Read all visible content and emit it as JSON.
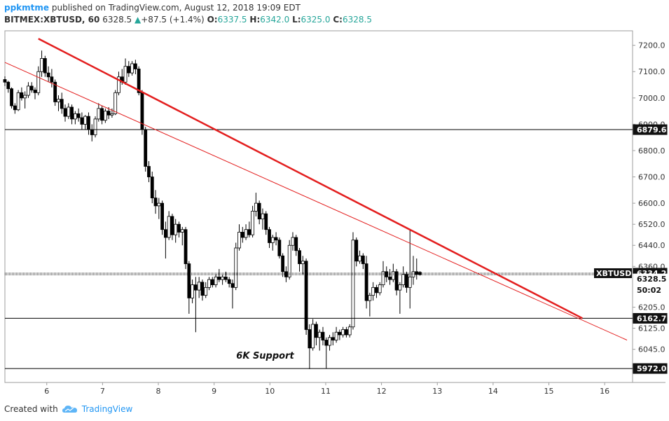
{
  "header": {
    "author": "ppkmtme",
    "published": "published on TradingView.com, August 12, 2018 19:09 EDT",
    "symbol": "BITMEX:XBTUSD, 60",
    "last": "6328.5",
    "change": "+87.5 (+1.4%)",
    "o_label": "O:",
    "o_val": "6337.5",
    "h_label": "H:",
    "h_val": "6342.0",
    "l_label": "L:",
    "l_val": "6325.0",
    "c_label": "C:",
    "c_val": "6328.5"
  },
  "footer": {
    "created_with": "Created with",
    "brand": "TradingView"
  },
  "chart_data": {
    "type": "candlestick",
    "title": "",
    "xlabel": "",
    "ylabel": "",
    "x_ticks": [
      "6",
      "7",
      "8",
      "9",
      "10",
      "11",
      "12",
      "13",
      "14",
      "15",
      "16"
    ],
    "y_ticks": [
      "7200.0",
      "7100.0",
      "7000.0",
      "6900.0",
      "6800.0",
      "6700.0",
      "6600.0",
      "6520.0",
      "6440.0",
      "6360.0",
      "6205.0",
      "6125.0",
      "6045.0"
    ],
    "xlim": [
      5.25,
      16.5
    ],
    "ylim": [
      5919,
      7255
    ],
    "grid": false,
    "horizontal_levels": [
      {
        "value": 6879.6,
        "label": "6879.6"
      },
      {
        "value": 6162.7,
        "label": "6162.7"
      },
      {
        "value": 5972.0,
        "label": "5972.0"
      }
    ],
    "price_labels": [
      {
        "name": "XBTUSD",
        "value": 6334.2,
        "label": "6334.2",
        "style": "dark"
      },
      {
        "name": "last",
        "value": 6328.5,
        "label": "6328.5",
        "style": "light"
      },
      {
        "name": "countdown",
        "value": 6270,
        "label": "50:02",
        "style": "light"
      }
    ],
    "trendlines": [
      {
        "name": "thick-downtrend",
        "points": [
          [
            5.85,
            7225
          ],
          [
            15.6,
            6163
          ]
        ],
        "color": "#e31e1e",
        "width": 2.5
      },
      {
        "name": "thin-downtrend",
        "points": [
          [
            5.25,
            7135
          ],
          [
            16.4,
            6080
          ]
        ],
        "color": "#e31e1e",
        "width": 1
      }
    ],
    "annotations": [
      {
        "text": "6K Support",
        "x": 10.0,
        "y": 6010
      }
    ],
    "candles": [
      {
        "t": 5.25,
        "o": 7070,
        "h": 7082,
        "l": 7045,
        "c": 7060
      },
      {
        "t": 5.31,
        "o": 7060,
        "h": 7065,
        "l": 7020,
        "c": 7035
      },
      {
        "t": 5.37,
        "o": 7035,
        "h": 7040,
        "l": 6960,
        "c": 6970
      },
      {
        "t": 5.43,
        "o": 6970,
        "h": 6980,
        "l": 6940,
        "c": 6955
      },
      {
        "t": 5.49,
        "o": 6955,
        "h": 7030,
        "l": 6950,
        "c": 7020
      },
      {
        "t": 5.55,
        "o": 7020,
        "h": 7040,
        "l": 6990,
        "c": 7000
      },
      {
        "t": 5.61,
        "o": 7000,
        "h": 7025,
        "l": 6960,
        "c": 7010
      },
      {
        "t": 5.67,
        "o": 7010,
        "h": 7060,
        "l": 7000,
        "c": 7045
      },
      {
        "t": 5.73,
        "o": 7045,
        "h": 7060,
        "l": 7020,
        "c": 7030
      },
      {
        "t": 5.79,
        "o": 7030,
        "h": 7040,
        "l": 6995,
        "c": 7020
      },
      {
        "t": 5.85,
        "o": 7020,
        "h": 7120,
        "l": 7010,
        "c": 7100
      },
      {
        "t": 5.91,
        "o": 7100,
        "h": 7180,
        "l": 7080,
        "c": 7150
      },
      {
        "t": 5.97,
        "o": 7150,
        "h": 7160,
        "l": 7080,
        "c": 7095
      },
      {
        "t": 6.03,
        "o": 7095,
        "h": 7120,
        "l": 7060,
        "c": 7080
      },
      {
        "t": 6.09,
        "o": 7080,
        "h": 7110,
        "l": 7040,
        "c": 7060
      },
      {
        "t": 6.15,
        "o": 7060,
        "h": 7070,
        "l": 6970,
        "c": 6985
      },
      {
        "t": 6.21,
        "o": 6985,
        "h": 7010,
        "l": 6950,
        "c": 6995
      },
      {
        "t": 6.27,
        "o": 6995,
        "h": 7020,
        "l": 6940,
        "c": 6960
      },
      {
        "t": 6.33,
        "o": 6960,
        "h": 6975,
        "l": 6910,
        "c": 6930
      },
      {
        "t": 6.39,
        "o": 6930,
        "h": 6980,
        "l": 6920,
        "c": 6965
      },
      {
        "t": 6.45,
        "o": 6965,
        "h": 6975,
        "l": 6900,
        "c": 6920
      },
      {
        "t": 6.51,
        "o": 6920,
        "h": 6950,
        "l": 6900,
        "c": 6940
      },
      {
        "t": 6.57,
        "o": 6940,
        "h": 6960,
        "l": 6910,
        "c": 6925
      },
      {
        "t": 6.63,
        "o": 6925,
        "h": 6945,
        "l": 6880,
        "c": 6900
      },
      {
        "t": 6.69,
        "o": 6900,
        "h": 6935,
        "l": 6880,
        "c": 6930
      },
      {
        "t": 6.75,
        "o": 6930,
        "h": 6945,
        "l": 6860,
        "c": 6880
      },
      {
        "t": 6.81,
        "o": 6880,
        "h": 6900,
        "l": 6835,
        "c": 6860
      },
      {
        "t": 6.87,
        "o": 6860,
        "h": 6930,
        "l": 6850,
        "c": 6920
      },
      {
        "t": 6.93,
        "o": 6920,
        "h": 6980,
        "l": 6910,
        "c": 6960
      },
      {
        "t": 6.99,
        "o": 6960,
        "h": 6970,
        "l": 6900,
        "c": 6915
      },
      {
        "t": 7.05,
        "o": 6915,
        "h": 6960,
        "l": 6905,
        "c": 6950
      },
      {
        "t": 7.11,
        "o": 6950,
        "h": 6965,
        "l": 6920,
        "c": 6935
      },
      {
        "t": 7.17,
        "o": 6935,
        "h": 6960,
        "l": 6925,
        "c": 6940
      },
      {
        "t": 7.23,
        "o": 6940,
        "h": 7030,
        "l": 6935,
        "c": 7020
      },
      {
        "t": 7.29,
        "o": 7020,
        "h": 7100,
        "l": 7010,
        "c": 7080
      },
      {
        "t": 7.35,
        "o": 7080,
        "h": 7110,
        "l": 7050,
        "c": 7060
      },
      {
        "t": 7.41,
        "o": 7060,
        "h": 7150,
        "l": 7050,
        "c": 7120
      },
      {
        "t": 7.47,
        "o": 7120,
        "h": 7140,
        "l": 7080,
        "c": 7095
      },
      {
        "t": 7.53,
        "o": 7095,
        "h": 7140,
        "l": 7085,
        "c": 7130
      },
      {
        "t": 7.59,
        "o": 7130,
        "h": 7145,
        "l": 7090,
        "c": 7110
      },
      {
        "t": 7.65,
        "o": 7110,
        "h": 7120,
        "l": 7010,
        "c": 7020
      },
      {
        "t": 7.71,
        "o": 7020,
        "h": 7030,
        "l": 6860,
        "c": 6880
      },
      {
        "t": 7.77,
        "o": 6880,
        "h": 6890,
        "l": 6720,
        "c": 6740
      },
      {
        "t": 7.83,
        "o": 6740,
        "h": 6760,
        "l": 6680,
        "c": 6700
      },
      {
        "t": 7.89,
        "o": 6700,
        "h": 6720,
        "l": 6600,
        "c": 6620
      },
      {
        "t": 7.95,
        "o": 6620,
        "h": 6650,
        "l": 6560,
        "c": 6590
      },
      {
        "t": 8.01,
        "o": 6590,
        "h": 6620,
        "l": 6540,
        "c": 6600
      },
      {
        "t": 8.07,
        "o": 6600,
        "h": 6610,
        "l": 6480,
        "c": 6500
      },
      {
        "t": 8.13,
        "o": 6500,
        "h": 6530,
        "l": 6390,
        "c": 6470
      },
      {
        "t": 8.19,
        "o": 6470,
        "h": 6570,
        "l": 6460,
        "c": 6550
      },
      {
        "t": 8.25,
        "o": 6550,
        "h": 6560,
        "l": 6460,
        "c": 6480
      },
      {
        "t": 8.31,
        "o": 6480,
        "h": 6540,
        "l": 6450,
        "c": 6520
      },
      {
        "t": 8.37,
        "o": 6520,
        "h": 6530,
        "l": 6470,
        "c": 6490
      },
      {
        "t": 8.43,
        "o": 6490,
        "h": 6510,
        "l": 6440,
        "c": 6500
      },
      {
        "t": 8.49,
        "o": 6500,
        "h": 6510,
        "l": 6350,
        "c": 6370
      },
      {
        "t": 8.55,
        "o": 6370,
        "h": 6380,
        "l": 6180,
        "c": 6240
      },
      {
        "t": 8.61,
        "o": 6240,
        "h": 6310,
        "l": 6220,
        "c": 6290
      },
      {
        "t": 8.67,
        "o": 6290,
        "h": 6320,
        "l": 6110,
        "c": 6270
      },
      {
        "t": 8.73,
        "o": 6270,
        "h": 6320,
        "l": 6240,
        "c": 6300
      },
      {
        "t": 8.79,
        "o": 6300,
        "h": 6310,
        "l": 6230,
        "c": 6250
      },
      {
        "t": 8.85,
        "o": 6250,
        "h": 6300,
        "l": 6240,
        "c": 6280
      },
      {
        "t": 8.91,
        "o": 6280,
        "h": 6320,
        "l": 6270,
        "c": 6310
      },
      {
        "t": 8.97,
        "o": 6310,
        "h": 6320,
        "l": 6280,
        "c": 6290
      },
      {
        "t": 9.03,
        "o": 6290,
        "h": 6330,
        "l": 6280,
        "c": 6320
      },
      {
        "t": 9.09,
        "o": 6320,
        "h": 6350,
        "l": 6300,
        "c": 6310
      },
      {
        "t": 9.15,
        "o": 6310,
        "h": 6330,
        "l": 6290,
        "c": 6320
      },
      {
        "t": 9.21,
        "o": 6320,
        "h": 6340,
        "l": 6300,
        "c": 6310
      },
      {
        "t": 9.27,
        "o": 6310,
        "h": 6320,
        "l": 6280,
        "c": 6295
      },
      {
        "t": 9.33,
        "o": 6295,
        "h": 6310,
        "l": 6200,
        "c": 6280
      },
      {
        "t": 9.39,
        "o": 6280,
        "h": 6450,
        "l": 6270,
        "c": 6430
      },
      {
        "t": 9.45,
        "o": 6430,
        "h": 6520,
        "l": 6420,
        "c": 6490
      },
      {
        "t": 9.51,
        "o": 6490,
        "h": 6510,
        "l": 6450,
        "c": 6470
      },
      {
        "t": 9.57,
        "o": 6470,
        "h": 6520,
        "l": 6460,
        "c": 6500
      },
      {
        "t": 9.63,
        "o": 6500,
        "h": 6530,
        "l": 6470,
        "c": 6480
      },
      {
        "t": 9.69,
        "o": 6480,
        "h": 6590,
        "l": 6470,
        "c": 6570
      },
      {
        "t": 9.75,
        "o": 6570,
        "h": 6640,
        "l": 6550,
        "c": 6600
      },
      {
        "t": 9.81,
        "o": 6600,
        "h": 6610,
        "l": 6520,
        "c": 6540
      },
      {
        "t": 9.87,
        "o": 6540,
        "h": 6580,
        "l": 6500,
        "c": 6560
      },
      {
        "t": 9.93,
        "o": 6560,
        "h": 6570,
        "l": 6480,
        "c": 6500
      },
      {
        "t": 9.99,
        "o": 6500,
        "h": 6510,
        "l": 6430,
        "c": 6450
      },
      {
        "t": 10.05,
        "o": 6450,
        "h": 6480,
        "l": 6420,
        "c": 6470
      },
      {
        "t": 10.11,
        "o": 6470,
        "h": 6490,
        "l": 6440,
        "c": 6460
      },
      {
        "t": 10.17,
        "o": 6460,
        "h": 6470,
        "l": 6390,
        "c": 6400
      },
      {
        "t": 10.23,
        "o": 6400,
        "h": 6410,
        "l": 6320,
        "c": 6340
      },
      {
        "t": 10.29,
        "o": 6340,
        "h": 6360,
        "l": 6300,
        "c": 6320
      },
      {
        "t": 10.35,
        "o": 6320,
        "h": 6460,
        "l": 6310,
        "c": 6440
      },
      {
        "t": 10.41,
        "o": 6440,
        "h": 6490,
        "l": 6420,
        "c": 6470
      },
      {
        "t": 10.47,
        "o": 6470,
        "h": 6480,
        "l": 6400,
        "c": 6420
      },
      {
        "t": 10.53,
        "o": 6420,
        "h": 6430,
        "l": 6340,
        "c": 6370
      },
      {
        "t": 10.59,
        "o": 6370,
        "h": 6400,
        "l": 6330,
        "c": 6380
      },
      {
        "t": 10.65,
        "o": 6380,
        "h": 6390,
        "l": 6100,
        "c": 6120
      },
      {
        "t": 10.71,
        "o": 6120,
        "h": 6140,
        "l": 5970,
        "c": 6050
      },
      {
        "t": 10.77,
        "o": 6050,
        "h": 6160,
        "l": 6040,
        "c": 6140
      },
      {
        "t": 10.83,
        "o": 6140,
        "h": 6150,
        "l": 6060,
        "c": 6090
      },
      {
        "t": 10.89,
        "o": 6090,
        "h": 6120,
        "l": 6040,
        "c": 6110
      },
      {
        "t": 10.95,
        "o": 6110,
        "h": 6130,
        "l": 6060,
        "c": 6080
      },
      {
        "t": 11.01,
        "o": 6080,
        "h": 6090,
        "l": 5972,
        "c": 6060
      },
      {
        "t": 11.07,
        "o": 6060,
        "h": 6100,
        "l": 6040,
        "c": 6090
      },
      {
        "t": 11.13,
        "o": 6090,
        "h": 6110,
        "l": 6060,
        "c": 6080
      },
      {
        "t": 11.19,
        "o": 6080,
        "h": 6130,
        "l": 6070,
        "c": 6110
      },
      {
        "t": 11.25,
        "o": 6110,
        "h": 6120,
        "l": 6080,
        "c": 6100
      },
      {
        "t": 11.31,
        "o": 6100,
        "h": 6130,
        "l": 6090,
        "c": 6120
      },
      {
        "t": 11.37,
        "o": 6120,
        "h": 6130,
        "l": 6090,
        "c": 6100
      },
      {
        "t": 11.43,
        "o": 6100,
        "h": 6140,
        "l": 6090,
        "c": 6130
      },
      {
        "t": 11.49,
        "o": 6130,
        "h": 6490,
        "l": 6120,
        "c": 6460
      },
      {
        "t": 11.55,
        "o": 6460,
        "h": 6470,
        "l": 6360,
        "c": 6380
      },
      {
        "t": 11.61,
        "o": 6380,
        "h": 6420,
        "l": 6370,
        "c": 6400
      },
      {
        "t": 11.67,
        "o": 6400,
        "h": 6410,
        "l": 6350,
        "c": 6370
      },
      {
        "t": 11.73,
        "o": 6370,
        "h": 6400,
        "l": 6200,
        "c": 6230
      },
      {
        "t": 11.79,
        "o": 6230,
        "h": 6260,
        "l": 6170,
        "c": 6250
      },
      {
        "t": 11.85,
        "o": 6250,
        "h": 6300,
        "l": 6230,
        "c": 6280
      },
      {
        "t": 11.91,
        "o": 6280,
        "h": 6290,
        "l": 6240,
        "c": 6260
      },
      {
        "t": 11.97,
        "o": 6260,
        "h": 6300,
        "l": 6250,
        "c": 6290
      },
      {
        "t": 12.03,
        "o": 6290,
        "h": 6380,
        "l": 6280,
        "c": 6340
      },
      {
        "t": 12.09,
        "o": 6340,
        "h": 6360,
        "l": 6300,
        "c": 6320
      },
      {
        "t": 12.15,
        "o": 6320,
        "h": 6350,
        "l": 6290,
        "c": 6310
      },
      {
        "t": 12.21,
        "o": 6310,
        "h": 6370,
        "l": 6300,
        "c": 6340
      },
      {
        "t": 12.27,
        "o": 6340,
        "h": 6350,
        "l": 6250,
        "c": 6270
      },
      {
        "t": 12.33,
        "o": 6270,
        "h": 6300,
        "l": 6180,
        "c": 6290
      },
      {
        "t": 12.39,
        "o": 6290,
        "h": 6360,
        "l": 6280,
        "c": 6330
      },
      {
        "t": 12.45,
        "o": 6330,
        "h": 6340,
        "l": 6260,
        "c": 6280
      },
      {
        "t": 12.51,
        "o": 6280,
        "h": 6500,
        "l": 6200,
        "c": 6320
      },
      {
        "t": 12.57,
        "o": 6320,
        "h": 6400,
        "l": 6290,
        "c": 6340
      },
      {
        "t": 12.63,
        "o": 6340,
        "h": 6390,
        "l": 6310,
        "c": 6330
      },
      {
        "t": 12.69,
        "o": 6337.5,
        "h": 6342,
        "l": 6325,
        "c": 6328.5
      }
    ]
  }
}
